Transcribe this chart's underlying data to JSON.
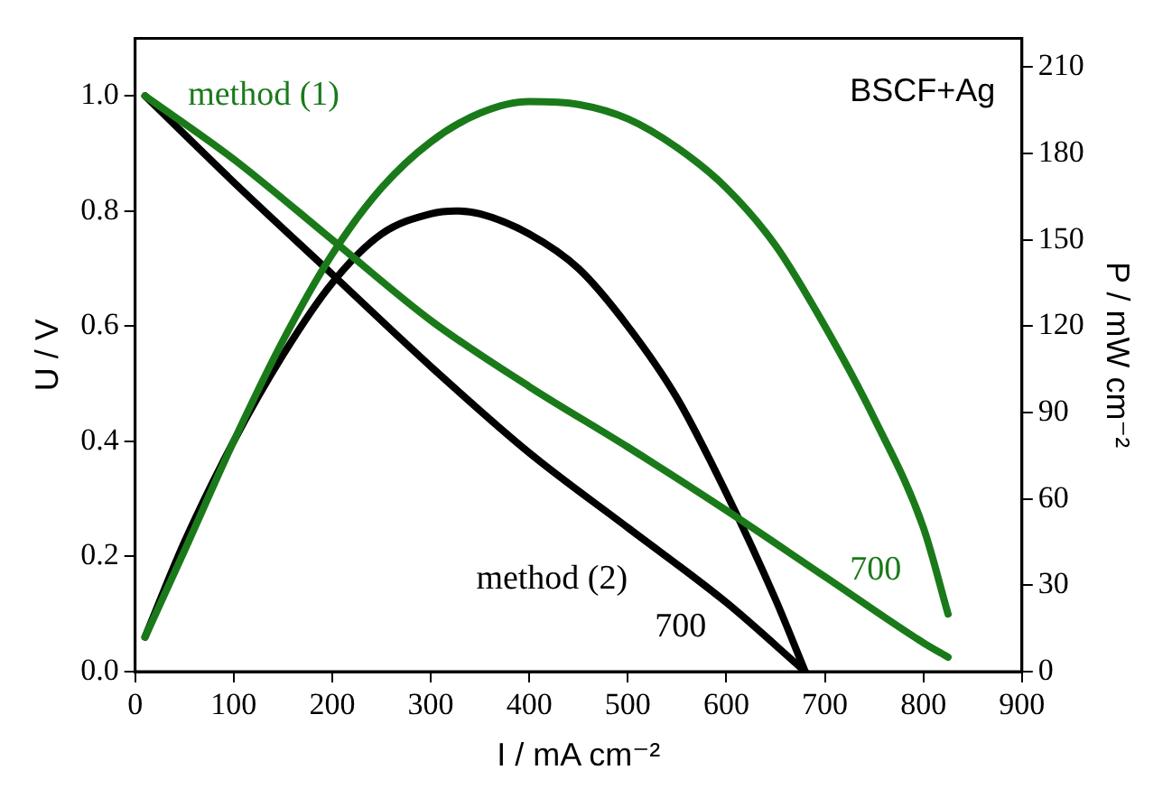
{
  "chart_data": {
    "type": "line",
    "xlabel": "I / mA cm⁻²",
    "ylabel": "U / V",
    "y2label": "P / mW cm⁻²",
    "xlim": [
      0,
      900
    ],
    "xticks": [
      0,
      100,
      200,
      300,
      400,
      500,
      600,
      700,
      800,
      900
    ],
    "ylim": [
      0,
      1.1
    ],
    "yticks": [
      {
        "value": 0,
        "label": "0.0"
      },
      {
        "value": 0.2,
        "label": "0.2"
      },
      {
        "value": 0.4,
        "label": "0.4"
      },
      {
        "value": 0.6,
        "label": "0.6"
      },
      {
        "value": 0.8,
        "label": "0.8"
      },
      {
        "value": 1,
        "label": "1.0"
      }
    ],
    "y2lim": [
      0,
      220
    ],
    "y2ticks": [
      0,
      30,
      60,
      90,
      120,
      150,
      180,
      210
    ],
    "grid": false,
    "legend": false,
    "marker": "none",
    "line_style": "solid",
    "series": [
      {
        "color": "#1a7a1a",
        "x": [
          10,
          100,
          200,
          300,
          400,
          500,
          600,
          700,
          800,
          825
        ],
        "values": [
          1.0,
          0.89,
          0.75,
          0.61,
          0.495,
          0.39,
          0.28,
          0.165,
          0.05,
          0.025
        ]
      },
      {
        "color": "#1a7a1a",
        "axis": "y2",
        "x": [
          10,
          50,
          100,
          150,
          200,
          250,
          300,
          350,
          400,
          450,
          500,
          550,
          600,
          650,
          700,
          750,
          800,
          825
        ],
        "values": [
          12,
          42,
          80,
          115,
          145,
          168,
          184,
          194,
          198,
          197,
          192,
          182,
          168,
          148,
          120,
          88,
          50,
          20
        ]
      },
      {
        "color": "#000000",
        "x": [
          10,
          100,
          200,
          300,
          400,
          500,
          600,
          680
        ],
        "values": [
          1.0,
          0.85,
          0.69,
          0.53,
          0.38,
          0.25,
          0.12,
          0.0
        ]
      },
      {
        "color": "#000000",
        "axis": "y2",
        "x": [
          10,
          50,
          100,
          150,
          200,
          250,
          300,
          325,
          350,
          400,
          450,
          500,
          550,
          600,
          650,
          680
        ],
        "values": [
          12,
          45,
          80,
          110,
          135,
          152,
          159,
          160,
          159,
          152,
          140,
          120,
          95,
          62,
          25,
          0
        ]
      }
    ],
    "annotations": [
      "method (1)",
      "700",
      "method (2)",
      "700",
      "BSCF+Ag"
    ]
  }
}
